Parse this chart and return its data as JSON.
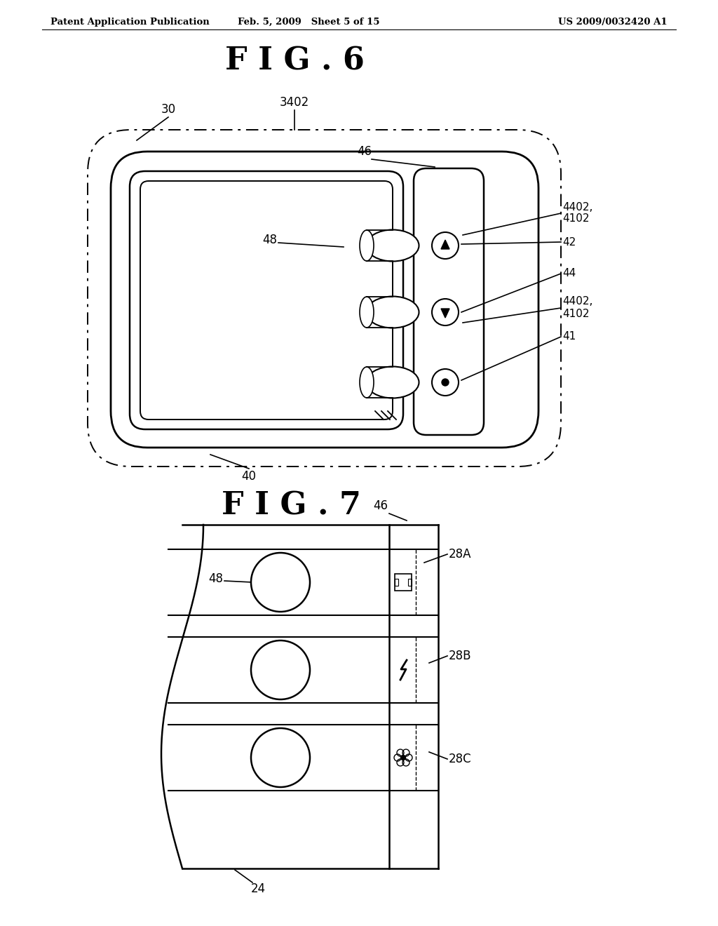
{
  "bg_color": "#ffffff",
  "header_left": "Patent Application Publication",
  "header_mid": "Feb. 5, 2009   Sheet 5 of 15",
  "header_right": "US 2009/0032420 A1",
  "fig6_title": "F I G . 6",
  "fig7_title": "F I G . 7",
  "line_color": "#000000"
}
